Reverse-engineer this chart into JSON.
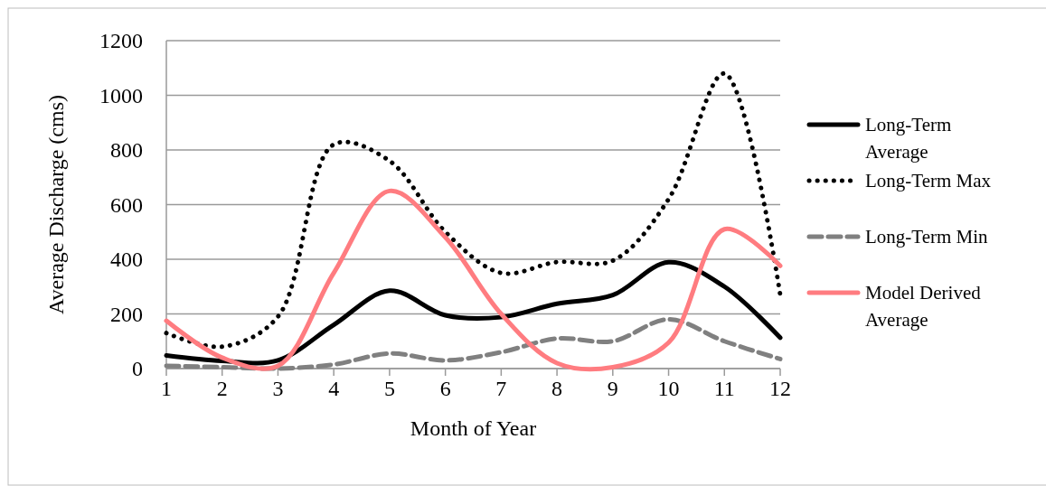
{
  "chart_data": {
    "type": "line",
    "xlabel": "Month of Year",
    "ylabel": "Average Discharge (cms)",
    "x": [
      1,
      2,
      3,
      4,
      5,
      6,
      7,
      8,
      9,
      10,
      11,
      12
    ],
    "series": [
      {
        "name": "Long-Term Average",
        "color": "#000000",
        "line_style": "solid",
        "values": [
          48,
          28,
          30,
          160,
          285,
          195,
          188,
          237,
          269,
          389,
          300,
          113
        ]
      },
      {
        "name": "Long-Term Max",
        "color": "#000000",
        "line_style": "dotted",
        "values": [
          130,
          80,
          190,
          820,
          760,
          500,
          350,
          390,
          395,
          620,
          1080,
          270
        ]
      },
      {
        "name": "Long-Term Min",
        "color": "#808080",
        "line_style": "dashed",
        "values": [
          10,
          5,
          0,
          15,
          55,
          30,
          60,
          110,
          100,
          180,
          100,
          35
        ]
      },
      {
        "name": "Model Derived Average",
        "color": "#ff7c80",
        "line_style": "solid",
        "values": [
          175,
          40,
          10,
          350,
          650,
          480,
          200,
          20,
          5,
          95,
          510,
          376
        ]
      }
    ],
    "xlim": [
      1,
      12
    ],
    "xticks": [
      1,
      2,
      3,
      4,
      5,
      6,
      7,
      8,
      9,
      10,
      11,
      12
    ],
    "ylim": [
      0,
      1200
    ],
    "yticks": [
      0,
      200,
      400,
      600,
      800,
      1000,
      1200
    ],
    "grid": "y",
    "legend": "right",
    "marker": "none"
  }
}
